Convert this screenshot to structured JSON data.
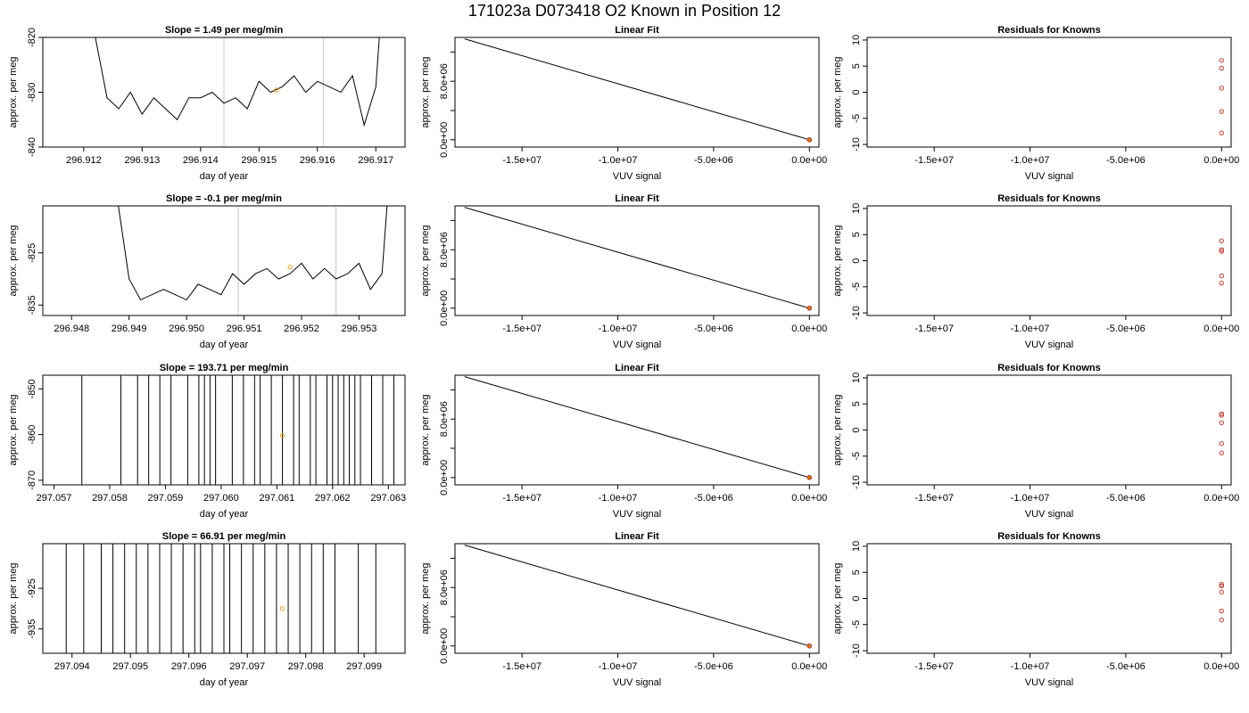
{
  "page": {
    "title": "171023a      D073418   O2 Known in Position  12"
  },
  "chart_data": [
    {
      "type": "line",
      "title": "Slope =  1.49  per meg/min",
      "xlabel": "day of year",
      "ylabel": "approx. per meg",
      "xlim": [
        296.9113,
        296.9175
      ],
      "ylim": [
        -840,
        -820
      ],
      "xticks": [
        "296.912",
        "296.913",
        "296.914",
        "296.915",
        "296.916",
        "296.917"
      ],
      "xtick_values": [
        296.912,
        296.913,
        296.914,
        296.915,
        296.916,
        296.917
      ],
      "yticks": [
        "-840",
        "-830",
        "-820"
      ],
      "ytick_values": [
        -840,
        -830,
        -820
      ],
      "vlines": [
        296.9144,
        296.9161
      ],
      "marker": {
        "x": 296.9153,
        "y": -829.6
      },
      "series": [
        {
          "x": [
            296.912,
            296.9122,
            296.9124,
            296.9126,
            296.9128,
            296.913,
            296.9132,
            296.9134,
            296.9136,
            296.9138,
            296.914,
            296.9142,
            296.9144,
            296.9146,
            296.9148,
            296.915,
            296.9152,
            296.9154,
            296.9156,
            296.9158,
            296.916,
            296.9162,
            296.9164,
            296.9166,
            296.9168,
            296.917,
            296.9171
          ],
          "y": [
            -813,
            -820,
            -831,
            -833,
            -830,
            -834,
            -831,
            -833,
            -835,
            -831,
            -831,
            -830,
            -832,
            -831,
            -833,
            -828,
            -830,
            -829,
            -827,
            -830,
            -828,
            -829,
            -830,
            -827,
            -836,
            -829,
            -814
          ]
        }
      ]
    },
    {
      "type": "line",
      "title": "Linear Fit",
      "xlabel": "VUV signal",
      "ylabel": "approx. per meg",
      "xlim": [
        -18500000,
        500000
      ],
      "ylim": [
        -1000000,
        14000000
      ],
      "xticks": [
        "-1.5e+07",
        "-1.0e+07",
        "-5.0e+06",
        "0.0e+00"
      ],
      "xtick_values": [
        -15000000,
        -10000000,
        -5000000,
        0
      ],
      "yticks": [
        "0.0e+00",
        "8.0e+06"
      ],
      "ytick_values": [
        0,
        8000000
      ],
      "fit_line": {
        "x": [
          -18000000,
          0
        ],
        "y": [
          13800000,
          0
        ]
      },
      "points": {
        "x": [
          0
        ],
        "y": [
          0
        ]
      }
    },
    {
      "type": "scatter",
      "title": "Residuals for Knowns",
      "xlabel": "VUV signal",
      "ylabel": "approx. per meg",
      "xlim": [
        -18500000,
        500000
      ],
      "ylim": [
        -10.5,
        10.5
      ],
      "xticks": [
        "-1.5e+07",
        "-1.0e+07",
        "-5.0e+06",
        "0.0e+00"
      ],
      "xtick_values": [
        -15000000,
        -10000000,
        -5000000,
        0
      ],
      "yticks": [
        "-10",
        "-5",
        "0",
        "5",
        "10"
      ],
      "ytick_values": [
        -10,
        -5,
        0,
        5,
        10
      ],
      "points": {
        "x": [
          0,
          0,
          0,
          0,
          0
        ],
        "y": [
          6.1,
          4.6,
          0.8,
          -3.7,
          -7.8
        ]
      }
    },
    {
      "type": "line",
      "title": "Slope =  -0.1  per meg/min",
      "xlabel": "day of year",
      "ylabel": "approx. per meg",
      "xlim": [
        296.9475,
        296.9538
      ],
      "ylim": [
        -837,
        -816
      ],
      "xticks": [
        "296.948",
        "296.949",
        "296.950",
        "296.951",
        "296.952",
        "296.953"
      ],
      "xtick_values": [
        296.948,
        296.949,
        296.95,
        296.951,
        296.952,
        296.953
      ],
      "yticks": [
        "-835",
        "-825"
      ],
      "ytick_values": [
        -835,
        -825
      ],
      "vlines": [
        296.9509,
        296.9526
      ],
      "marker": {
        "x": 296.9518,
        "y": -827.7
      },
      "series": [
        {
          "x": [
            296.9488,
            296.949,
            296.9492,
            296.9494,
            296.9496,
            296.9498,
            296.95,
            296.9502,
            296.9504,
            296.9506,
            296.9508,
            296.951,
            296.9512,
            296.9514,
            296.9516,
            296.9518,
            296.952,
            296.9522,
            296.9524,
            296.9526,
            296.9528,
            296.953,
            296.9532,
            296.9534,
            296.9535
          ],
          "y": [
            -815,
            -830,
            -834,
            -833,
            -832,
            -833,
            -834,
            -831,
            -832,
            -833,
            -829,
            -831,
            -829,
            -828,
            -830,
            -829,
            -827,
            -830,
            -828,
            -830,
            -829,
            -827,
            -832,
            -829,
            -814
          ]
        }
      ]
    },
    {
      "type": "line",
      "title": "Linear Fit",
      "xlabel": "VUV signal",
      "ylabel": "approx. per meg",
      "xlim": [
        -18500000,
        500000
      ],
      "ylim": [
        -1000000,
        14000000
      ],
      "xticks": [
        "-1.5e+07",
        "-1.0e+07",
        "-5.0e+06",
        "0.0e+00"
      ],
      "xtick_values": [
        -15000000,
        -10000000,
        -5000000,
        0
      ],
      "yticks": [
        "0.0e+00",
        "8.0e+06"
      ],
      "ytick_values": [
        0,
        8000000
      ],
      "fit_line": {
        "x": [
          -18000000,
          0
        ],
        "y": [
          13800000,
          0
        ]
      },
      "points": {
        "x": [
          0
        ],
        "y": [
          0
        ]
      }
    },
    {
      "type": "scatter",
      "title": "Residuals for Knowns",
      "xlabel": "VUV signal",
      "ylabel": "approx. per meg",
      "xlim": [
        -18500000,
        500000
      ],
      "ylim": [
        -10.5,
        10.5
      ],
      "xticks": [
        "-1.5e+07",
        "-1.0e+07",
        "-5.0e+06",
        "0.0e+00"
      ],
      "xtick_values": [
        -15000000,
        -10000000,
        -5000000,
        0
      ],
      "yticks": [
        "-10",
        "-5",
        "0",
        "5",
        "10"
      ],
      "ytick_values": [
        -10,
        -5,
        0,
        5,
        10
      ],
      "points": {
        "x": [
          0,
          0,
          0,
          0,
          0
        ],
        "y": [
          3.8,
          2.1,
          1.8,
          -2.9,
          -4.3
        ]
      }
    },
    {
      "type": "line",
      "title": "Slope =  193.71  per meg/min",
      "xlabel": "day of year",
      "ylabel": "approx. per meg",
      "xlim": [
        297.0568,
        297.0633
      ],
      "ylim": [
        -871,
        -847
      ],
      "xticks": [
        "297.057",
        "297.058",
        "297.059",
        "297.060",
        "297.061",
        "297.062",
        "297.063"
      ],
      "xtick_values": [
        297.057,
        297.058,
        297.059,
        297.06,
        297.061,
        297.062,
        297.063
      ],
      "yticks": [
        "-870",
        "-860",
        "-850"
      ],
      "ytick_values": [
        -870,
        -860,
        -850
      ],
      "vlines": [
        297.0575,
        297.0582,
        297.0585,
        297.0587,
        297.0589,
        297.0591,
        297.0594,
        297.0596,
        297.0597,
        297.0598,
        297.0599,
        297.0602,
        297.0604,
        297.0606,
        297.0607,
        297.0609,
        297.0611,
        297.0613,
        297.0614,
        297.0616,
        297.0617,
        297.0619,
        297.062,
        297.0621,
        297.0622,
        297.0623,
        297.0624,
        297.0625,
        297.0627,
        297.0629,
        297.0631
      ],
      "marker": {
        "x": 297.0611,
        "y": -860.2
      },
      "series": []
    },
    {
      "type": "line",
      "title": "Linear Fit",
      "xlabel": "VUV signal",
      "ylabel": "approx. per meg",
      "xlim": [
        -18500000,
        500000
      ],
      "ylim": [
        -1000000,
        14000000
      ],
      "xticks": [
        "-1.5e+07",
        "-1.0e+07",
        "-5.0e+06",
        "0.0e+00"
      ],
      "xtick_values": [
        -15000000,
        -10000000,
        -5000000,
        0
      ],
      "yticks": [
        "0.0e+00",
        "8.0e+06"
      ],
      "ytick_values": [
        0,
        8000000
      ],
      "fit_line": {
        "x": [
          -18000000,
          0
        ],
        "y": [
          13800000,
          0
        ]
      },
      "points": {
        "x": [
          0
        ],
        "y": [
          0
        ]
      }
    },
    {
      "type": "scatter",
      "title": "Residuals for Knowns",
      "xlabel": "VUV signal",
      "ylabel": "approx. per meg",
      "xlim": [
        -18500000,
        500000
      ],
      "ylim": [
        -10.5,
        10.5
      ],
      "xticks": [
        "-1.5e+07",
        "-1.0e+07",
        "-5.0e+06",
        "0.0e+00"
      ],
      "xtick_values": [
        -15000000,
        -10000000,
        -5000000,
        0
      ],
      "yticks": [
        "-10",
        "-5",
        "0",
        "5",
        "10"
      ],
      "ytick_values": [
        -10,
        -5,
        0,
        5,
        10
      ],
      "points": {
        "x": [
          0,
          0,
          0,
          0,
          0
        ],
        "y": [
          3.1,
          2.8,
          1.4,
          -2.6,
          -4.4
        ]
      }
    },
    {
      "type": "line",
      "title": "Slope =  66.91  per meg/min",
      "xlabel": "day of year",
      "ylabel": "approx. per meg",
      "xlim": [
        297.0935,
        297.0997
      ],
      "ylim": [
        -941,
        -914
      ],
      "xticks": [
        "297.094",
        "297.095",
        "297.096",
        "297.097",
        "297.098",
        "297.099"
      ],
      "xtick_values": [
        297.094,
        297.095,
        297.096,
        297.097,
        297.098,
        297.099
      ],
      "yticks": [
        "-935",
        "-925"
      ],
      "ytick_values": [
        -935,
        -925
      ],
      "vlines": [
        297.0939,
        297.0942,
        297.0945,
        297.0947,
        297.0949,
        297.0951,
        297.0953,
        297.0955,
        297.0957,
        297.0959,
        297.0961,
        297.0962,
        297.0964,
        297.0966,
        297.0967,
        297.0969,
        297.0971,
        297.0973,
        297.0975,
        297.0977,
        297.0979,
        297.0981,
        297.0983,
        297.0985,
        297.0989,
        297.0992
      ],
      "marker": {
        "x": 297.0976,
        "y": -930.0
      },
      "series": []
    },
    {
      "type": "line",
      "title": "Linear Fit",
      "xlabel": "VUV signal",
      "ylabel": "approx. per meg",
      "xlim": [
        -18500000,
        500000
      ],
      "ylim": [
        -1000000,
        14000000
      ],
      "xticks": [
        "-1.5e+07",
        "-1.0e+07",
        "-5.0e+06",
        "0.0e+00"
      ],
      "xtick_values": [
        -15000000,
        -10000000,
        -5000000,
        0
      ],
      "yticks": [
        "0.0e+00",
        "8.0e+06"
      ],
      "ytick_values": [
        0,
        8000000
      ],
      "fit_line": {
        "x": [
          -18000000,
          0
        ],
        "y": [
          13800000,
          0
        ]
      },
      "points": {
        "x": [
          0
        ],
        "y": [
          0
        ]
      }
    },
    {
      "type": "scatter",
      "title": "Residuals for Knowns",
      "xlabel": "VUV signal",
      "ylabel": "approx. per meg",
      "xlim": [
        -18500000,
        500000
      ],
      "ylim": [
        -10.5,
        10.5
      ],
      "xticks": [
        "-1.5e+07",
        "-1.0e+07",
        "-5.0e+06",
        "0.0e+00"
      ],
      "xtick_values": [
        -15000000,
        -10000000,
        -5000000,
        0
      ],
      "yticks": [
        "-10",
        "-5",
        "0",
        "5",
        "10"
      ],
      "ytick_values": [
        -10,
        -5,
        0,
        5,
        10
      ],
      "points": {
        "x": [
          0,
          0,
          0,
          0,
          0
        ],
        "y": [
          2.7,
          2.4,
          1.2,
          -2.4,
          -4.1
        ]
      }
    }
  ]
}
